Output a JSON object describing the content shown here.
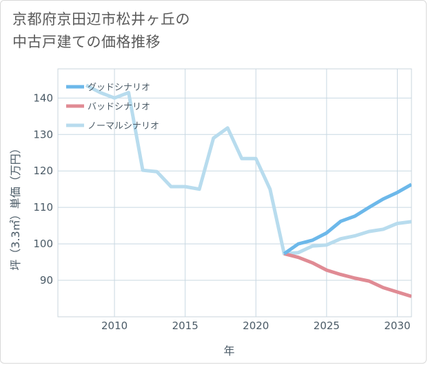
{
  "title_lines": [
    "京都府京田辺市松井ヶ丘の",
    "中古戸建ての価格推移"
  ],
  "chart_data": {
    "type": "line",
    "title": "京都府京田辺市松井ヶ丘の中古戸建ての価格推移",
    "xlabel": "年",
    "ylabel": "坪（3.3㎡）単価（万円）",
    "xlim": [
      2006,
      2031
    ],
    "ylim": [
      80,
      148
    ],
    "x_ticks": [
      2010,
      2015,
      2020,
      2025,
      2030
    ],
    "y_ticks": [
      90,
      100,
      110,
      120,
      130,
      140
    ],
    "legend_position": "top-left",
    "series": [
      {
        "name": "グッドシナリオ",
        "color": "#6cb8ea",
        "x": [
          2022,
          2023,
          2024,
          2025,
          2026,
          2027,
          2028,
          2029,
          2030,
          2031
        ],
        "values": [
          97.3,
          100.0,
          101.0,
          103.0,
          106.2,
          107.6,
          110.0,
          112.3,
          114.1,
          116.3
        ]
      },
      {
        "name": "バッドシナリオ",
        "color": "#e08b94",
        "x": [
          2022,
          2023,
          2024,
          2025,
          2026,
          2027,
          2028,
          2029,
          2030,
          2031
        ],
        "values": [
          97.3,
          96.3,
          94.8,
          92.8,
          91.6,
          90.6,
          89.8,
          88.0,
          86.8,
          85.6
        ]
      },
      {
        "name": "ノーマルシナリオ",
        "color": "#b8dcee",
        "x": [
          2008,
          2009,
          2010,
          2011,
          2012,
          2013,
          2014,
          2015,
          2016,
          2017,
          2018,
          2019,
          2020,
          2021,
          2022,
          2023,
          2024,
          2025,
          2026,
          2027,
          2028,
          2029,
          2030,
          2031
        ],
        "values": [
          143.5,
          141.5,
          140.0,
          141.5,
          120.2,
          119.8,
          115.7,
          115.7,
          115.0,
          129.0,
          131.8,
          123.4,
          123.4,
          115.0,
          97.3,
          97.6,
          99.4,
          99.7,
          101.4,
          102.2,
          103.4,
          104.0,
          105.6,
          106.1
        ]
      }
    ]
  }
}
